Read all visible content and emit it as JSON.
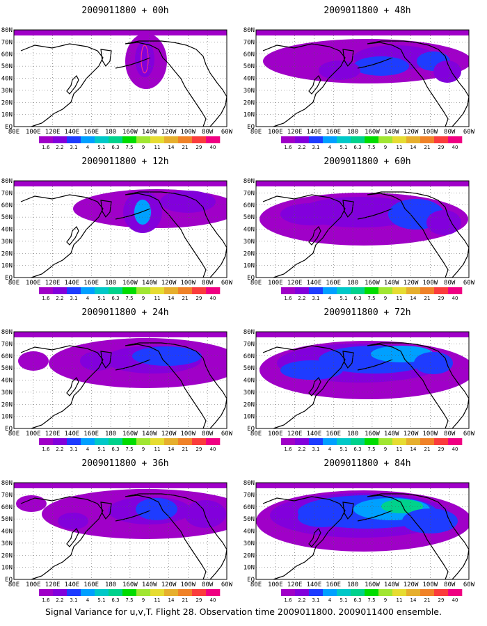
{
  "figure": {
    "footer": "Signal Variance for u,v,T. Flight 28. Observation time 2009011800. 2009011400 ensemble."
  },
  "axes": {
    "x_ticks": [
      "80E",
      "100E",
      "120E",
      "140E",
      "160E",
      "180",
      "160W",
      "140W",
      "120W",
      "100W",
      "80W",
      "60W"
    ],
    "y_ticks": [
      "80N",
      "70N",
      "60N",
      "50N",
      "40N",
      "30N",
      "20N",
      "10N",
      "EQ"
    ],
    "y_ticks_display": [
      "80N",
      "70N",
      "60N",
      "50N",
      "40N",
      "30N",
      "20N",
      "10N",
      "EQ"
    ]
  },
  "colorbar": {
    "labels": [
      "1.6",
      "2.2",
      "3.1",
      "4",
      "5.1",
      "6.3",
      "7.5",
      "9",
      "11",
      "14",
      "21",
      "29",
      "40"
    ],
    "colors": [
      "#a000c8",
      "#8200dc",
      "#1e3cff",
      "#00a0ff",
      "#00c8c8",
      "#00d28c",
      "#00dc00",
      "#a0e632",
      "#e6dc32",
      "#e6af2d",
      "#f08228",
      "#fa3c3c",
      "#f00082"
    ]
  },
  "panels": [
    {
      "id": "00h",
      "title": "2009011800 + 00h"
    },
    {
      "id": "48h",
      "title": "2009011800 + 48h"
    },
    {
      "id": "12h",
      "title": "2009011800 + 12h"
    },
    {
      "id": "60h",
      "title": "2009011800 + 60h"
    },
    {
      "id": "24h",
      "title": "2009011800 + 24h"
    },
    {
      "id": "72h",
      "title": "2009011800 + 72h"
    },
    {
      "id": "36h",
      "title": "2009011800 + 36h"
    },
    {
      "id": "84h",
      "title": "2009011800 + 84h"
    }
  ]
}
